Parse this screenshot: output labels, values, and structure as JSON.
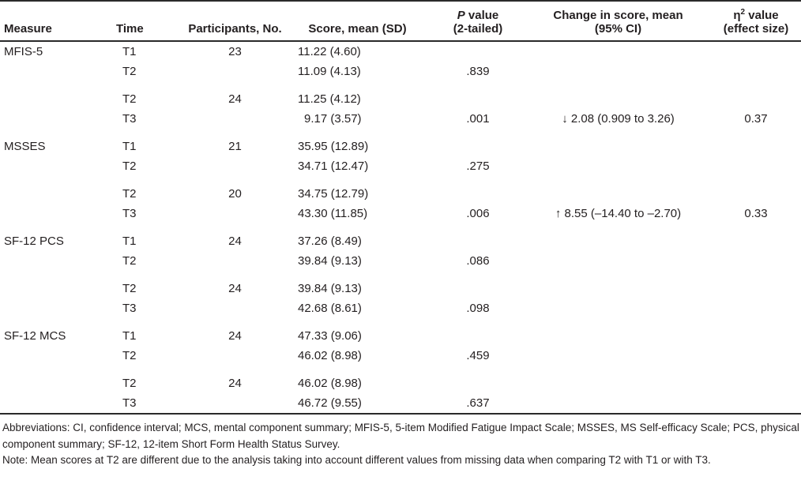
{
  "table": {
    "headers": {
      "measure": "Measure",
      "time": "Time",
      "participants": "Participants, No.",
      "score": "Score, mean (SD)",
      "p_italic": "P",
      "p_rest": " value",
      "p_line2": "(2-tailed)",
      "change_line1": "Change in score, mean",
      "change_line2": "(95% CI)",
      "eta_symbol": "η",
      "eta_sup": "2",
      "eta_rest": " value",
      "eta_line2": "(effect size)"
    },
    "rows": [
      {
        "measure": "MFIS-5",
        "time": "T1",
        "n": "23",
        "score": "11.22 (4.60)",
        "p": "",
        "change": "",
        "eta": ""
      },
      {
        "measure": "",
        "time": "T2",
        "n": "",
        "score": "11.09 (4.13)",
        "p": ".839",
        "change": "",
        "eta": ""
      },
      {
        "measure": "",
        "time": "T2",
        "n": "24",
        "score": "11.25 (4.12)",
        "p": "",
        "change": "",
        "eta": ""
      },
      {
        "measure": "",
        "time": "T3",
        "n": "",
        "score": "9.17 (3.57)",
        "p": ".001",
        "change": "↓ 2.08 (0.909 to 3.26)",
        "eta": "0.37"
      },
      {
        "measure": "MSSES",
        "time": "T1",
        "n": "21",
        "score": "35.95 (12.89)",
        "p": "",
        "change": "",
        "eta": ""
      },
      {
        "measure": "",
        "time": "T2",
        "n": "",
        "score": "34.71 (12.47)",
        "p": ".275",
        "change": "",
        "eta": ""
      },
      {
        "measure": "",
        "time": "T2",
        "n": "20",
        "score": "34.75 (12.79)",
        "p": "",
        "change": "",
        "eta": ""
      },
      {
        "measure": "",
        "time": "T3",
        "n": "",
        "score": "43.30 (11.85)",
        "p": ".006",
        "change": "↑ 8.55 (–14.40 to –2.70)",
        "eta": "0.33"
      },
      {
        "measure": "SF-12 PCS",
        "time": "T1",
        "n": "24",
        "score": "37.26 (8.49)",
        "p": "",
        "change": "",
        "eta": ""
      },
      {
        "measure": "",
        "time": "T2",
        "n": "",
        "score": "39.84 (9.13)",
        "p": ".086",
        "change": "",
        "eta": ""
      },
      {
        "measure": "",
        "time": "T2",
        "n": "24",
        "score": "39.84 (9.13)",
        "p": "",
        "change": "",
        "eta": ""
      },
      {
        "measure": "",
        "time": "T3",
        "n": "",
        "score": "42.68 (8.61)",
        "p": ".098",
        "change": "",
        "eta": ""
      },
      {
        "measure": "SF-12 MCS",
        "time": "T1",
        "n": "24",
        "score": "47.33 (9.06)",
        "p": "",
        "change": "",
        "eta": ""
      },
      {
        "measure": "",
        "time": "T2",
        "n": "",
        "score": "46.02 (8.98)",
        "p": ".459",
        "change": "",
        "eta": ""
      },
      {
        "measure": "",
        "time": "T2",
        "n": "24",
        "score": "46.02 (8.98)",
        "p": "",
        "change": "",
        "eta": ""
      },
      {
        "measure": "",
        "time": "T3",
        "n": "",
        "score": "46.72 (9.55)",
        "p": ".637",
        "change": "",
        "eta": ""
      }
    ],
    "footnotes": {
      "abbreviations": "Abbreviations: CI, confidence interval; MCS, mental component summary; MFIS-5, 5-item Modified Fatigue Impact Scale; MSSES, MS Self-efficacy Scale; PCS, physical component summary; SF-12, 12-item Short Form Health Status Survey.",
      "note": "Note: Mean scores at T2 are different due to the analysis taking into account different values from missing data when comparing T2 with T1 or with T3."
    }
  }
}
